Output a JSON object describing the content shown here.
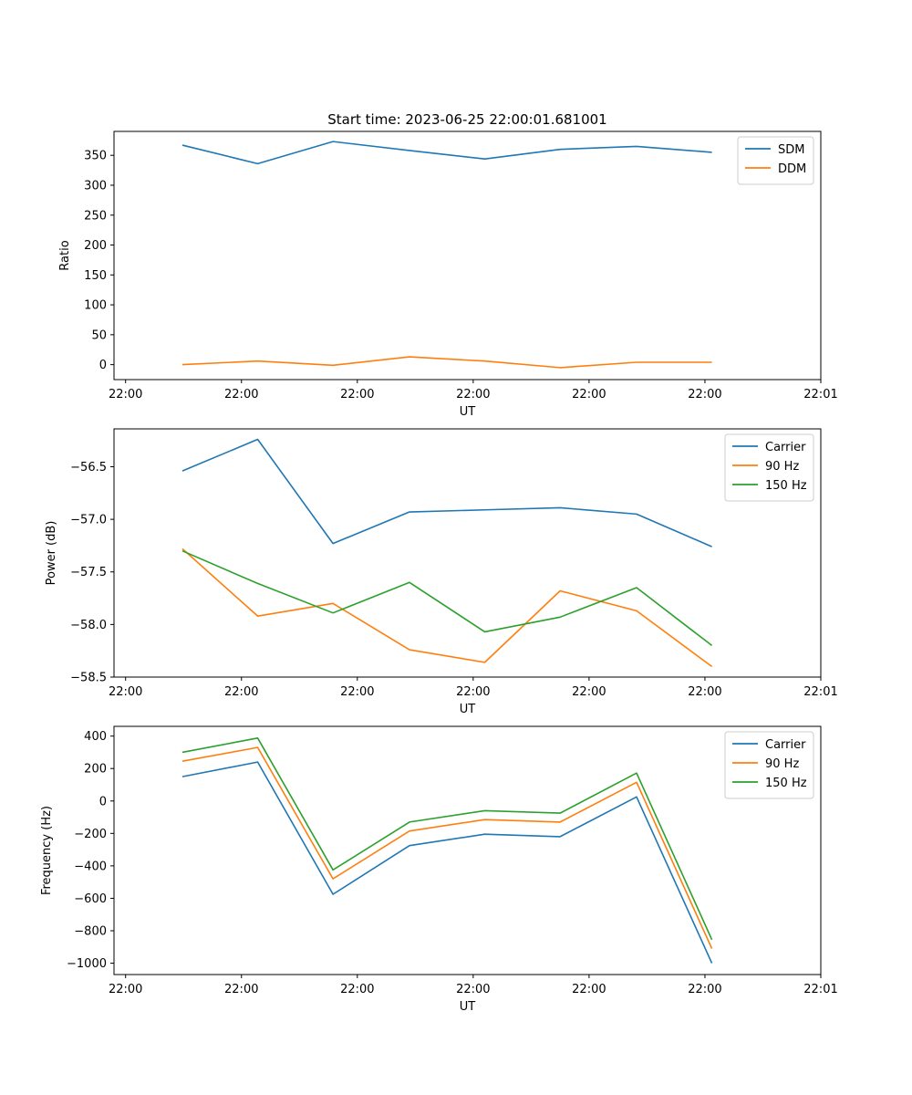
{
  "chart_data": [
    {
      "type": "line",
      "title": "Start time: 2023-06-25 22:00:01.681001",
      "xlabel": "UT",
      "ylabel": "Ratio",
      "x_tick_labels": [
        "22:00",
        "22:00",
        "22:00",
        "22:00",
        "22:00",
        "22:00",
        "22:01"
      ],
      "x_ticks": [
        0,
        1,
        2,
        3,
        4,
        5,
        6
      ],
      "xlim": [
        -0.1,
        6.0
      ],
      "ylim": [
        -25,
        390
      ],
      "y_ticks": [
        0,
        50,
        100,
        150,
        200,
        250,
        300,
        350
      ],
      "y_tick_labels": [
        "0",
        "50",
        "100",
        "150",
        "200",
        "250",
        "300",
        "350"
      ],
      "x": [
        0.49,
        1.14,
        1.79,
        2.45,
        3.1,
        3.75,
        4.41,
        5.06
      ],
      "legend_position": "upper right",
      "series": [
        {
          "name": "SDM",
          "color": "#1f77b4",
          "values": [
            367,
            336,
            373,
            358,
            344,
            360,
            365,
            355
          ]
        },
        {
          "name": "DDM",
          "color": "#ff7f0e",
          "values": [
            0,
            6,
            -1,
            13,
            6,
            -5,
            4,
            4
          ]
        }
      ]
    },
    {
      "type": "line",
      "title": "",
      "xlabel": "UT",
      "ylabel": "Power (dB)",
      "x_tick_labels": [
        "22:00",
        "22:00",
        "22:00",
        "22:00",
        "22:00",
        "22:00",
        "22:01"
      ],
      "x_ticks": [
        0,
        1,
        2,
        3,
        4,
        5,
        6
      ],
      "xlim": [
        -0.1,
        6.0
      ],
      "ylim": [
        -58.5,
        -56.14
      ],
      "y_ticks": [
        -58.5,
        -58.0,
        -57.5,
        -57.0,
        -56.5
      ],
      "y_tick_labels": [
        "−58.5",
        "−58.0",
        "−57.5",
        "−57.0",
        "−56.5"
      ],
      "x": [
        0.49,
        1.14,
        1.79,
        2.45,
        3.1,
        3.75,
        4.41,
        5.06
      ],
      "legend_position": "upper right",
      "series": [
        {
          "name": "Carrier",
          "color": "#1f77b4",
          "values": [
            -56.54,
            -56.24,
            -57.23,
            -56.93,
            -56.91,
            -56.89,
            -56.95,
            -57.26
          ]
        },
        {
          "name": "90 Hz",
          "color": "#ff7f0e",
          "values": [
            -57.28,
            -57.92,
            -57.8,
            -58.24,
            -58.36,
            -57.68,
            -57.87,
            -58.4
          ]
        },
        {
          "name": "150 Hz",
          "color": "#2ca02c",
          "values": [
            -57.3,
            -57.61,
            -57.89,
            -57.6,
            -58.07,
            -57.93,
            -57.65,
            -58.2
          ]
        }
      ]
    },
    {
      "type": "line",
      "title": "",
      "xlabel": "UT",
      "ylabel": "Frequency (Hz)",
      "x_tick_labels": [
        "22:00",
        "22:00",
        "22:00",
        "22:00",
        "22:00",
        "22:00",
        "22:01"
      ],
      "x_ticks": [
        0,
        1,
        2,
        3,
        4,
        5,
        6
      ],
      "xlim": [
        -0.1,
        6.0
      ],
      "ylim": [
        -1070,
        460
      ],
      "y_ticks": [
        -1000,
        -800,
        -600,
        -400,
        -200,
        0,
        200,
        400
      ],
      "y_tick_labels": [
        "−1000",
        "−800",
        "−600",
        "−400",
        "−200",
        "0",
        "200",
        "400"
      ],
      "x": [
        0.49,
        1.14,
        1.79,
        2.45,
        3.1,
        3.75,
        4.41,
        5.06
      ],
      "legend_position": "upper right",
      "series": [
        {
          "name": "Carrier",
          "color": "#1f77b4",
          "values": [
            150,
            240,
            -575,
            -275,
            -205,
            -220,
            25,
            -1000
          ]
        },
        {
          "name": "90 Hz",
          "color": "#ff7f0e",
          "values": [
            245,
            330,
            -480,
            -185,
            -115,
            -130,
            115,
            -910
          ]
        },
        {
          "name": "150 Hz",
          "color": "#2ca02c",
          "values": [
            300,
            388,
            -425,
            -130,
            -60,
            -75,
            172,
            -855
          ]
        }
      ]
    }
  ]
}
